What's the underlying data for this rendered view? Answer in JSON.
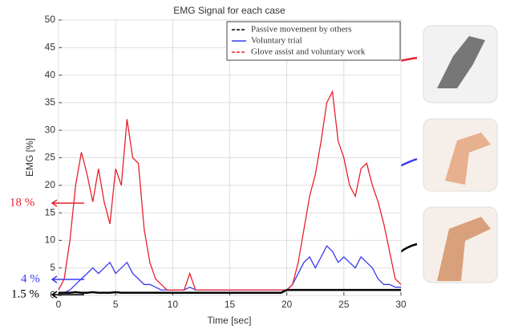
{
  "chart_data": {
    "type": "line",
    "title": "EMG Signal for each case",
    "x_label": "Time [sec]",
    "y_label": "EMG [%]",
    "x": [
      0,
      0.5,
      1,
      1.5,
      2,
      2.5,
      3,
      3.5,
      4,
      4.5,
      5,
      5.5,
      6,
      6.5,
      7,
      7.5,
      8,
      8.5,
      9,
      9.5,
      10,
      10.5,
      11,
      11.5,
      12,
      12.5,
      13,
      13.5,
      14,
      14.5,
      15,
      15.5,
      16,
      16.5,
      17,
      17.5,
      18,
      18.5,
      19,
      19.5,
      20,
      20.5,
      21,
      21.5,
      22,
      22.5,
      23,
      23.5,
      24,
      24.5,
      25,
      25.5,
      26,
      26.5,
      27,
      27.5,
      28,
      28.5,
      29,
      29.5,
      30
    ],
    "series": [
      {
        "name": "Passive movement by others",
        "color": "#000000",
        "values": [
          0.5,
          0.5,
          0.5,
          0.6,
          0.5,
          0.5,
          0.6,
          0.5,
          0.5,
          0.5,
          0.6,
          0.5,
          0.5,
          0.5,
          0.5,
          0.5,
          0.5,
          0.5,
          0.5,
          0.5,
          0.5,
          0.5,
          0.5,
          0.5,
          0.5,
          0.5,
          0.5,
          0.5,
          0.5,
          0.5,
          0.5,
          0.5,
          0.5,
          0.5,
          0.5,
          0.5,
          0.5,
          0.5,
          0.5,
          0.5,
          1,
          1,
          1,
          1,
          1,
          1,
          1,
          1,
          1,
          1,
          1,
          1,
          1,
          1,
          1,
          1,
          1,
          1,
          1,
          1,
          1
        ]
      },
      {
        "name": "Voluntary trial",
        "color": "#3a3af0",
        "values": [
          0.5,
          0.5,
          1,
          2,
          3,
          4,
          5,
          4,
          5,
          6,
          4,
          5,
          6,
          4,
          3,
          2,
          2,
          1.5,
          1,
          1,
          1,
          1,
          1,
          1.5,
          1,
          1,
          1,
          1,
          1,
          1,
          1,
          1,
          1,
          1,
          1,
          1,
          1,
          1,
          1,
          1,
          1,
          2,
          4,
          6,
          7,
          5,
          7,
          9,
          8,
          6,
          7,
          6,
          5,
          7,
          6,
          5,
          3,
          2,
          2,
          1.5,
          1.5
        ]
      },
      {
        "name": "Glove assist and voluntary work",
        "color": "#e8202a",
        "values": [
          1,
          3,
          10,
          20,
          26,
          22,
          17,
          23,
          17,
          13,
          23,
          20,
          32,
          25,
          24,
          12,
          6,
          3,
          2,
          1,
          1,
          1,
          1,
          4,
          1,
          1,
          1,
          1,
          1,
          1,
          1,
          1,
          1,
          1,
          1,
          1,
          1,
          1,
          1,
          1,
          1,
          2,
          6,
          12,
          18,
          22,
          28,
          35,
          37,
          28,
          25,
          20,
          18,
          23,
          24,
          20,
          17,
          13,
          8,
          3,
          2
        ]
      }
    ],
    "xlim": [
      0,
      30
    ],
    "xticks": [
      0,
      5,
      10,
      15,
      20,
      25,
      30
    ],
    "ylim": [
      0,
      50
    ],
    "yticks": [
      0,
      5,
      10,
      15,
      20,
      25,
      30,
      35,
      40,
      45,
      50
    ],
    "grid": true,
    "legend": "upper right",
    "annotations": [
      {
        "text": "18 %",
        "color": "#e8202a"
      },
      {
        "text": "4 %",
        "color": "#3a3af0"
      },
      {
        "text": "1.5 %",
        "color": "#000000"
      }
    ]
  }
}
